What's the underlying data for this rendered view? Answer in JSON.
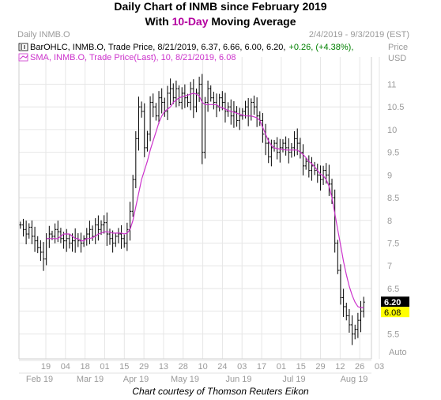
{
  "title_prefix": "Daily Chart of INMB since February 2019",
  "subtitle": {
    "pre": "With ",
    "highlight": "10-Day",
    "post": " Moving Average"
  },
  "caption": "Chart courtesy of Thomson Reuters Eikon",
  "colors": {
    "bars": "#000000",
    "sma": "#cc33cc",
    "positive": "#008000",
    "grid": "#e6e6e6",
    "axis_text": "#9a9a9a",
    "price_tag_bg": "#000000",
    "sma_tag_bg": "#ffff00"
  },
  "chart_data": {
    "type": "line",
    "panel_label": "Daily INMB.O",
    "date_range": "2/4/2019 - 9/3/2019 (EST)",
    "ylabel": "Price\nUSD",
    "ylim": [
      4.95,
      11.6
    ],
    "y_ticks": [
      "11",
      "10.5",
      "10",
      "9.5",
      "9",
      "8.5",
      "8",
      "7.5",
      "7",
      "6.5",
      "6",
      "5.5"
    ],
    "x_day_ticks": [
      "19",
      "04",
      "18",
      "01",
      "15",
      "29",
      "13",
      "28",
      "10",
      "24",
      "03",
      "17",
      "01",
      "15",
      "29",
      "12",
      "26",
      "03"
    ],
    "x_month_labels": [
      "Feb 19",
      "Mar 19",
      "Apr 19",
      "May 19",
      "Jun 19",
      "Jul 19",
      "Aug 19"
    ],
    "axis_auto_label": "Auto",
    "legend": {
      "ohlc": "BarOHLC, INMB.O, Trade Price, 8/21/2019, 6.37, 6.66, 6.00, 6.20,",
      "ohlc_change": "+0.26, (+4.38%),",
      "sma": "SMA, INMB.O, Trade Price(Last), 10, 8/21/2019, 6.08"
    },
    "last_price_tag": "6.20",
    "sma_tag": "6.08",
    "last_price": 6.2,
    "last_sma": 6.08,
    "price_closes": [
      7.9,
      7.8,
      7.7,
      7.85,
      7.65,
      7.55,
      7.4,
      7.3,
      7.15,
      7.6,
      7.7,
      7.65,
      7.8,
      7.75,
      7.6,
      7.55,
      7.6,
      7.5,
      7.55,
      7.6,
      7.55,
      7.5,
      7.6,
      7.7,
      7.8,
      7.65,
      7.9,
      7.8,
      7.9,
      7.95,
      7.7,
      7.6,
      7.5,
      7.65,
      7.7,
      7.6,
      7.5,
      7.8,
      8.2,
      8.9,
      9.8,
      10.5,
      10.4,
      9.6,
      9.9,
      10.6,
      10.5,
      10.3,
      10.7,
      10.6,
      10.4,
      10.8,
      10.9,
      10.7,
      10.9,
      10.6,
      10.8,
      10.7,
      10.6,
      10.9,
      10.5,
      10.8,
      11.0,
      9.5,
      10.6,
      10.9,
      10.7,
      10.6,
      10.5,
      10.7,
      10.6,
      10.4,
      10.5,
      10.3,
      10.4,
      10.2,
      10.3,
      10.4,
      10.5,
      10.3,
      10.6,
      10.5,
      10.3,
      10.2,
      9.9,
      9.7,
      9.4,
      9.6,
      9.7,
      9.5,
      9.6,
      9.7,
      9.6,
      9.5,
      9.6,
      9.8,
      9.7,
      9.5,
      9.2,
      9.3,
      9.1,
      9.2,
      9.1,
      9.0,
      8.9,
      9.1,
      9.0,
      8.8,
      8.5,
      7.5,
      6.9,
      6.3,
      6.1,
      5.9,
      5.7,
      5.5,
      5.6,
      5.8,
      6.0,
      6.2
    ],
    "sma_values": [
      null,
      null,
      null,
      null,
      null,
      null,
      null,
      null,
      null,
      7.6,
      7.6,
      7.6,
      7.6,
      7.6,
      7.65,
      7.7,
      7.7,
      7.7,
      7.65,
      7.6,
      7.6,
      7.55,
      7.55,
      7.6,
      7.6,
      7.62,
      7.65,
      7.7,
      7.72,
      7.75,
      7.75,
      7.74,
      7.72,
      7.72,
      7.72,
      7.72,
      7.7,
      7.72,
      7.8,
      8.0,
      8.3,
      8.6,
      8.9,
      9.1,
      9.3,
      9.55,
      9.75,
      9.95,
      10.15,
      10.3,
      10.4,
      10.45,
      10.5,
      10.6,
      10.65,
      10.7,
      10.72,
      10.74,
      10.76,
      10.78,
      10.8,
      10.78,
      10.74,
      10.6,
      10.55,
      10.55,
      10.55,
      10.55,
      10.55,
      10.5,
      10.48,
      10.45,
      10.42,
      10.4,
      10.38,
      10.36,
      10.34,
      10.32,
      10.3,
      10.3,
      10.3,
      10.28,
      10.26,
      10.2,
      10.05,
      9.9,
      9.75,
      9.65,
      9.6,
      9.58,
      9.57,
      9.56,
      9.55,
      9.55,
      9.55,
      9.55,
      9.55,
      9.5,
      9.45,
      9.38,
      9.3,
      9.25,
      9.18,
      9.1,
      9.02,
      8.98,
      8.9,
      8.75,
      8.5,
      8.15,
      7.8,
      7.45,
      7.1,
      6.8,
      6.55,
      6.35,
      6.2,
      6.1,
      6.08,
      6.08
    ]
  }
}
